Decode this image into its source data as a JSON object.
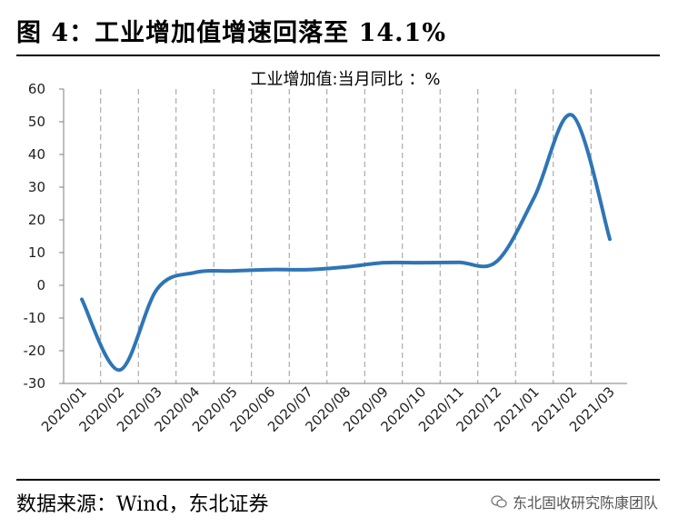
{
  "figure_title": "图 4：工业增加值增速回落至 14.1%",
  "source": "数据来源：Wind，东北证券",
  "watermark": "东北固收研究陈康团队",
  "colors": {
    "line": "#2E75B6",
    "grid": "#9a9a9a",
    "axis": "#7f7f7f"
  },
  "chart_data": {
    "type": "line",
    "title": "工业增加值:当月同比  ：%",
    "xlabel": "",
    "ylabel": "",
    "categories": [
      "2020/01",
      "2020/02",
      "2020/03",
      "2020/04",
      "2020/05",
      "2020/06",
      "2020/07",
      "2020/08",
      "2020/09",
      "2020/10",
      "2020/11",
      "2020/12",
      "2021/01",
      "2021/02",
      "2021/03"
    ],
    "series": [
      {
        "values": [
          -4.3,
          -25.9,
          -1.1,
          3.9,
          4.4,
          4.8,
          4.8,
          5.6,
          6.9,
          6.9,
          7.0,
          7.3,
          27.0,
          52.0,
          14.1
        ]
      }
    ],
    "ylim": [
      -30,
      60
    ],
    "yticks": [
      -30,
      -20,
      -10,
      0,
      10,
      20,
      30,
      40,
      50,
      60
    ],
    "grid": "vertical dashed",
    "legend": "none"
  }
}
